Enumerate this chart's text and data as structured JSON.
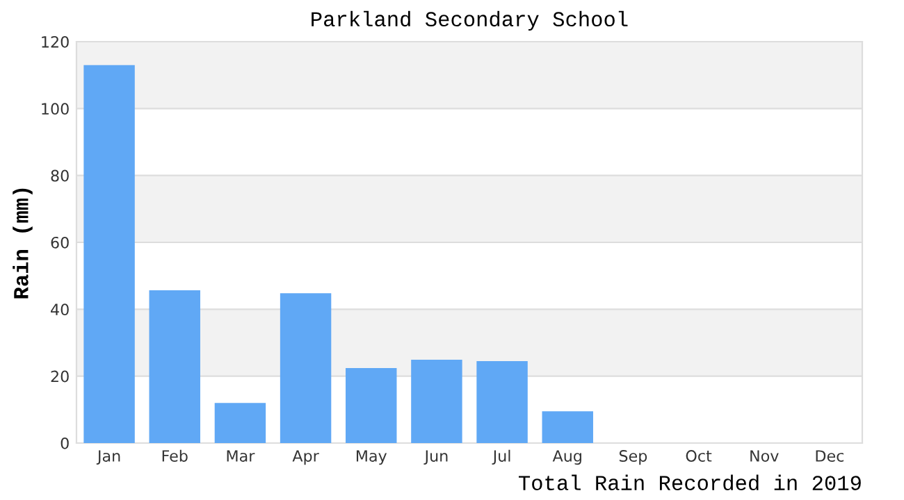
{
  "chart_data": {
    "type": "bar",
    "title": "Parkland Secondary School",
    "ylabel": "Rain (mm)",
    "categories": [
      "Jan",
      "Feb",
      "Mar",
      "Apr",
      "May",
      "Jun",
      "Jul",
      "Aug",
      "Sep",
      "Oct",
      "Nov",
      "Dec"
    ],
    "values": [
      113,
      45.7,
      12,
      44.8,
      22.4,
      24.9,
      24.5,
      9.5,
      0,
      0,
      0,
      0
    ],
    "color": "#60a8f5",
    "ylim": [
      0,
      120
    ],
    "yticks": [
      0,
      20,
      40,
      60,
      80,
      100,
      120
    ],
    "grid": "y",
    "bands": [
      {
        "axis": "y",
        "from": 20,
        "to": 40,
        "color": "#f2f2f2"
      },
      {
        "axis": "y",
        "from": 60,
        "to": 80,
        "color": "#f2f2f2"
      },
      {
        "axis": "y",
        "from": 100,
        "to": 120,
        "color": "#f2f2f2"
      }
    ],
    "annotations": [
      "Total Rain Recorded in 2019"
    ]
  }
}
